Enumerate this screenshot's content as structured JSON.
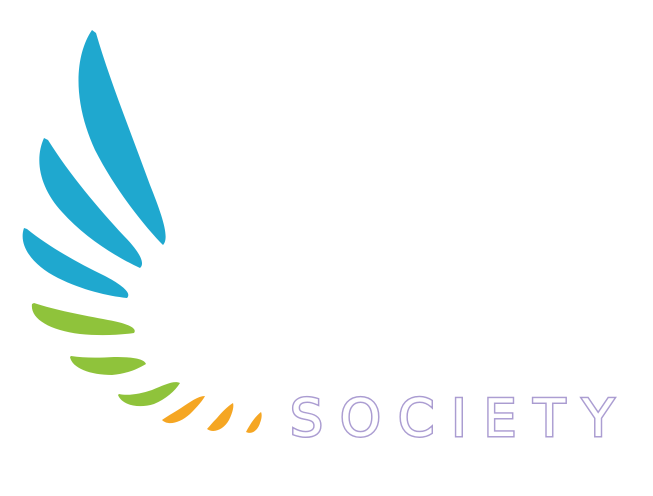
{
  "logo": {
    "wordmark": "SOCIETY",
    "colors": {
      "feather_blue": "#1fa8cf",
      "feather_green": "#8fc33b",
      "feather_orange": "#f5a623",
      "wordmark_outline": "#a99bd0",
      "background": "#ffffff"
    },
    "icon": "wing-icon"
  }
}
